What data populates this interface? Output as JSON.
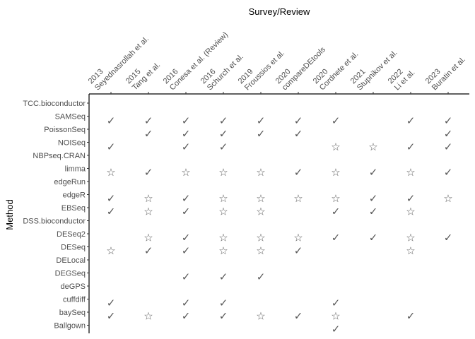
{
  "chart_data": {
    "type": "scatter",
    "title": "",
    "xlabel": "Survey/Review",
    "ylabel": "Method",
    "grid": false,
    "mark_color": "#595959",
    "axis_color": "#000000",
    "symbols": {
      "check": "✓",
      "star": "☆"
    },
    "x_categories": [
      {
        "year": "2013",
        "name": "Seyednasrollah et al."
      },
      {
        "year": "2015",
        "name": "Tang et al."
      },
      {
        "year": "2016",
        "name": "Conesa et al. (Review)"
      },
      {
        "year": "2016",
        "name": "Schurch et al."
      },
      {
        "year": "2019",
        "name": "Froussios  et al."
      },
      {
        "year": "2020",
        "name": "compareDEtools"
      },
      {
        "year": "2020",
        "name": "Cordnete et al."
      },
      {
        "year": "2021",
        "name": "Stupnikov et al."
      },
      {
        "year": "2022",
        "name": "Li et al."
      },
      {
        "year": "2023",
        "name": "Buratin et al."
      }
    ],
    "y_categories": [
      "TCC.bioconductor",
      "SAMSeq",
      "PoissonSeq",
      "NOISeq",
      "NBPseq.CRAN",
      "limma",
      "edgeRun",
      "edgeR",
      "EBSeq",
      "DSS.bioconductor",
      "DESeq2",
      "DESeq",
      "DELocal",
      "DEGSeq",
      "deGPS",
      "cuffdiff",
      "baySeq",
      "Ballgown"
    ],
    "points": [
      {
        "x": 0,
        "y": 1.35,
        "symbol": "check"
      },
      {
        "x": 1,
        "y": 1.35,
        "symbol": "check"
      },
      {
        "x": 2,
        "y": 1.35,
        "symbol": "check"
      },
      {
        "x": 3,
        "y": 1.35,
        "symbol": "check"
      },
      {
        "x": 4,
        "y": 1.35,
        "symbol": "check"
      },
      {
        "x": 5,
        "y": 1.35,
        "symbol": "check"
      },
      {
        "x": 6,
        "y": 1.35,
        "symbol": "check"
      },
      {
        "x": 8,
        "y": 1.35,
        "symbol": "check"
      },
      {
        "x": 9,
        "y": 1.35,
        "symbol": "check"
      },
      {
        "x": 1,
        "y": 2.35,
        "symbol": "check"
      },
      {
        "x": 2,
        "y": 2.35,
        "symbol": "check"
      },
      {
        "x": 3,
        "y": 2.35,
        "symbol": "check"
      },
      {
        "x": 4,
        "y": 2.35,
        "symbol": "check"
      },
      {
        "x": 5,
        "y": 2.35,
        "symbol": "check"
      },
      {
        "x": 9,
        "y": 2.35,
        "symbol": "check"
      },
      {
        "x": 0,
        "y": 3.35,
        "symbol": "check"
      },
      {
        "x": 2,
        "y": 3.35,
        "symbol": "check"
      },
      {
        "x": 3,
        "y": 3.35,
        "symbol": "check"
      },
      {
        "x": 6,
        "y": 3.35,
        "symbol": "star"
      },
      {
        "x": 7,
        "y": 3.35,
        "symbol": "star"
      },
      {
        "x": 8,
        "y": 3.35,
        "symbol": "check"
      },
      {
        "x": 9,
        "y": 3.35,
        "symbol": "check"
      },
      {
        "x": 0,
        "y": 5.3,
        "symbol": "star"
      },
      {
        "x": 1,
        "y": 5.3,
        "symbol": "check"
      },
      {
        "x": 2,
        "y": 5.3,
        "symbol": "star"
      },
      {
        "x": 3,
        "y": 5.3,
        "symbol": "star"
      },
      {
        "x": 4,
        "y": 5.3,
        "symbol": "star"
      },
      {
        "x": 5,
        "y": 5.3,
        "symbol": "check"
      },
      {
        "x": 6,
        "y": 5.3,
        "symbol": "star"
      },
      {
        "x": 7,
        "y": 5.3,
        "symbol": "check"
      },
      {
        "x": 8,
        "y": 5.3,
        "symbol": "star"
      },
      {
        "x": 9,
        "y": 5.3,
        "symbol": "check"
      },
      {
        "x": 0,
        "y": 7.3,
        "symbol": "check"
      },
      {
        "x": 1,
        "y": 7.3,
        "symbol": "star"
      },
      {
        "x": 2,
        "y": 7.3,
        "symbol": "check"
      },
      {
        "x": 3,
        "y": 7.3,
        "symbol": "star"
      },
      {
        "x": 4,
        "y": 7.3,
        "symbol": "star"
      },
      {
        "x": 5,
        "y": 7.3,
        "symbol": "star"
      },
      {
        "x": 6,
        "y": 7.3,
        "symbol": "star"
      },
      {
        "x": 7,
        "y": 7.3,
        "symbol": "check"
      },
      {
        "x": 8,
        "y": 7.3,
        "symbol": "check"
      },
      {
        "x": 9,
        "y": 7.3,
        "symbol": "star"
      },
      {
        "x": 0,
        "y": 8.3,
        "symbol": "check"
      },
      {
        "x": 1,
        "y": 8.3,
        "symbol": "star"
      },
      {
        "x": 2,
        "y": 8.3,
        "symbol": "check"
      },
      {
        "x": 3,
        "y": 8.3,
        "symbol": "star"
      },
      {
        "x": 4,
        "y": 8.3,
        "symbol": "star"
      },
      {
        "x": 6,
        "y": 8.3,
        "symbol": "check"
      },
      {
        "x": 7,
        "y": 8.3,
        "symbol": "check"
      },
      {
        "x": 8,
        "y": 8.3,
        "symbol": "star"
      },
      {
        "x": 1,
        "y": 10.3,
        "symbol": "star"
      },
      {
        "x": 2,
        "y": 10.3,
        "symbol": "check"
      },
      {
        "x": 3,
        "y": 10.3,
        "symbol": "star"
      },
      {
        "x": 4,
        "y": 10.3,
        "symbol": "star"
      },
      {
        "x": 5,
        "y": 10.3,
        "symbol": "star"
      },
      {
        "x": 6,
        "y": 10.3,
        "symbol": "check"
      },
      {
        "x": 7,
        "y": 10.3,
        "symbol": "check"
      },
      {
        "x": 8,
        "y": 10.3,
        "symbol": "star"
      },
      {
        "x": 9,
        "y": 10.3,
        "symbol": "check"
      },
      {
        "x": 0,
        "y": 11.3,
        "symbol": "star"
      },
      {
        "x": 1,
        "y": 11.3,
        "symbol": "check"
      },
      {
        "x": 2,
        "y": 11.3,
        "symbol": "check"
      },
      {
        "x": 3,
        "y": 11.3,
        "symbol": "star"
      },
      {
        "x": 4,
        "y": 11.3,
        "symbol": "star"
      },
      {
        "x": 5,
        "y": 11.3,
        "symbol": "check"
      },
      {
        "x": 8,
        "y": 11.3,
        "symbol": "star"
      },
      {
        "x": 2,
        "y": 13.3,
        "symbol": "check"
      },
      {
        "x": 3,
        "y": 13.3,
        "symbol": "check"
      },
      {
        "x": 4,
        "y": 13.3,
        "symbol": "check"
      },
      {
        "x": 0,
        "y": 15.3,
        "symbol": "check"
      },
      {
        "x": 2,
        "y": 15.3,
        "symbol": "check"
      },
      {
        "x": 3,
        "y": 15.3,
        "symbol": "check"
      },
      {
        "x": 6,
        "y": 15.3,
        "symbol": "check"
      },
      {
        "x": 0,
        "y": 16.3,
        "symbol": "check"
      },
      {
        "x": 1,
        "y": 16.3,
        "symbol": "star"
      },
      {
        "x": 2,
        "y": 16.3,
        "symbol": "check"
      },
      {
        "x": 3,
        "y": 16.3,
        "symbol": "check"
      },
      {
        "x": 4,
        "y": 16.3,
        "symbol": "star"
      },
      {
        "x": 5,
        "y": 16.3,
        "symbol": "check"
      },
      {
        "x": 6,
        "y": 16.3,
        "symbol": "star"
      },
      {
        "x": 8,
        "y": 16.3,
        "symbol": "check"
      },
      {
        "x": 6,
        "y": 17.3,
        "symbol": "check"
      }
    ]
  }
}
